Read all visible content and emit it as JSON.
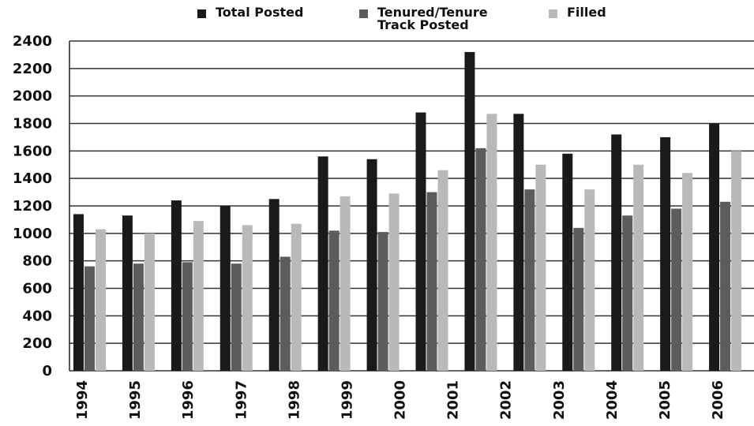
{
  "chart_data": {
    "type": "bar",
    "categories": [
      "1994",
      "1995",
      "1996",
      "1997",
      "1998",
      "1999",
      "2000",
      "2001",
      "2002",
      "2003",
      "2004",
      "2005",
      "2006",
      null
    ],
    "series": [
      {
        "name": "Total Posted",
        "color": "#1a1a1a",
        "values": [
          1140,
          1130,
          1240,
          1200,
          1250,
          1560,
          1540,
          1880,
          2320,
          1870,
          1580,
          1720,
          1700,
          1800
        ]
      },
      {
        "name": "Tenured/Tenure Track Posted",
        "color": "#5c5c5c",
        "values": [
          760,
          780,
          790,
          780,
          830,
          1020,
          1010,
          1300,
          1620,
          1320,
          1040,
          1130,
          1180,
          1230
        ]
      },
      {
        "name": "Filled",
        "color": "#b9b9b9",
        "values": [
          1030,
          1000,
          1090,
          1060,
          1070,
          1270,
          1290,
          1460,
          1870,
          1500,
          1320,
          1500,
          1440,
          1600
        ]
      }
    ],
    "ylim": [
      0,
      2400
    ],
    "yticks": [
      0,
      200,
      400,
      600,
      800,
      1000,
      1200,
      1400,
      1600,
      1800,
      2000,
      2200,
      2400
    ],
    "grid": true
  }
}
